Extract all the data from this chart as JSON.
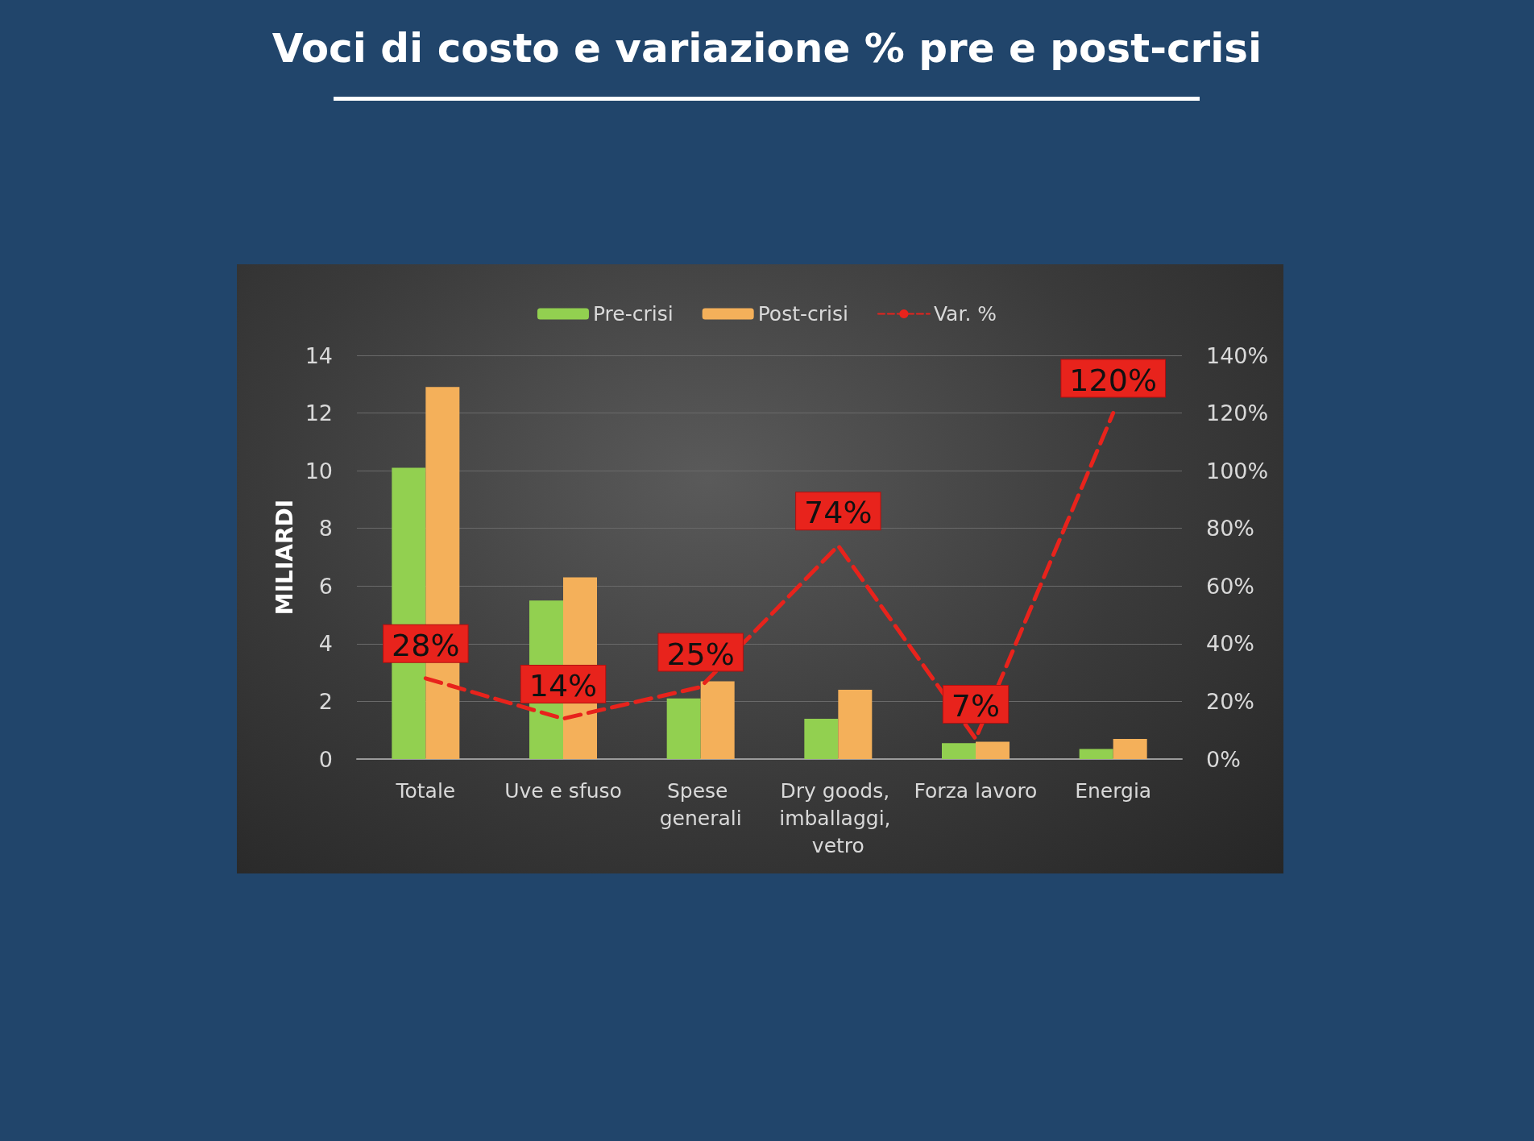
{
  "chart_data": {
    "type": "bar",
    "title": "Voci di costo e variazione % pre e post-crisi",
    "ylabel": "MILIARDI",
    "categories": [
      "Totale",
      "Uve e sfuso",
      "Spese generali",
      "Dry goods, imballaggi, vetro",
      "Forza lavoro",
      "Energia"
    ],
    "series": [
      {
        "name": "Pre-crisi",
        "color": "#92d050",
        "values": [
          10.1,
          5.5,
          2.1,
          1.4,
          0.55,
          0.35
        ]
      },
      {
        "name": "Post-crisi",
        "color": "#f4b05a",
        "values": [
          12.9,
          6.3,
          2.7,
          2.4,
          0.6,
          0.7
        ]
      },
      {
        "name": "Var. %",
        "type": "line",
        "axis": "y2",
        "color": "#e8231c",
        "line_style": "dashed",
        "marker": "none",
        "values": [
          28,
          14,
          25,
          74,
          7,
          120
        ],
        "value_labels": [
          "28%",
          "14%",
          "25%",
          "74%",
          "7%",
          "120%"
        ]
      }
    ],
    "ylim": [
      0,
      14
    ],
    "yticks": [
      0,
      2,
      4,
      6,
      8,
      10,
      12,
      14
    ],
    "y2lim": [
      0,
      140
    ],
    "y2ticks": [
      {
        "value": 0,
        "label": "0%"
      },
      {
        "value": 20,
        "label": "20%"
      },
      {
        "value": 40,
        "label": "40%"
      },
      {
        "value": 60,
        "label": "60%"
      },
      {
        "value": 80,
        "label": "80%"
      },
      {
        "value": 100,
        "label": "100%"
      },
      {
        "value": 120,
        "label": "120%"
      },
      {
        "value": 140,
        "label": "140%"
      }
    ],
    "grid": "y",
    "legend": "top"
  }
}
